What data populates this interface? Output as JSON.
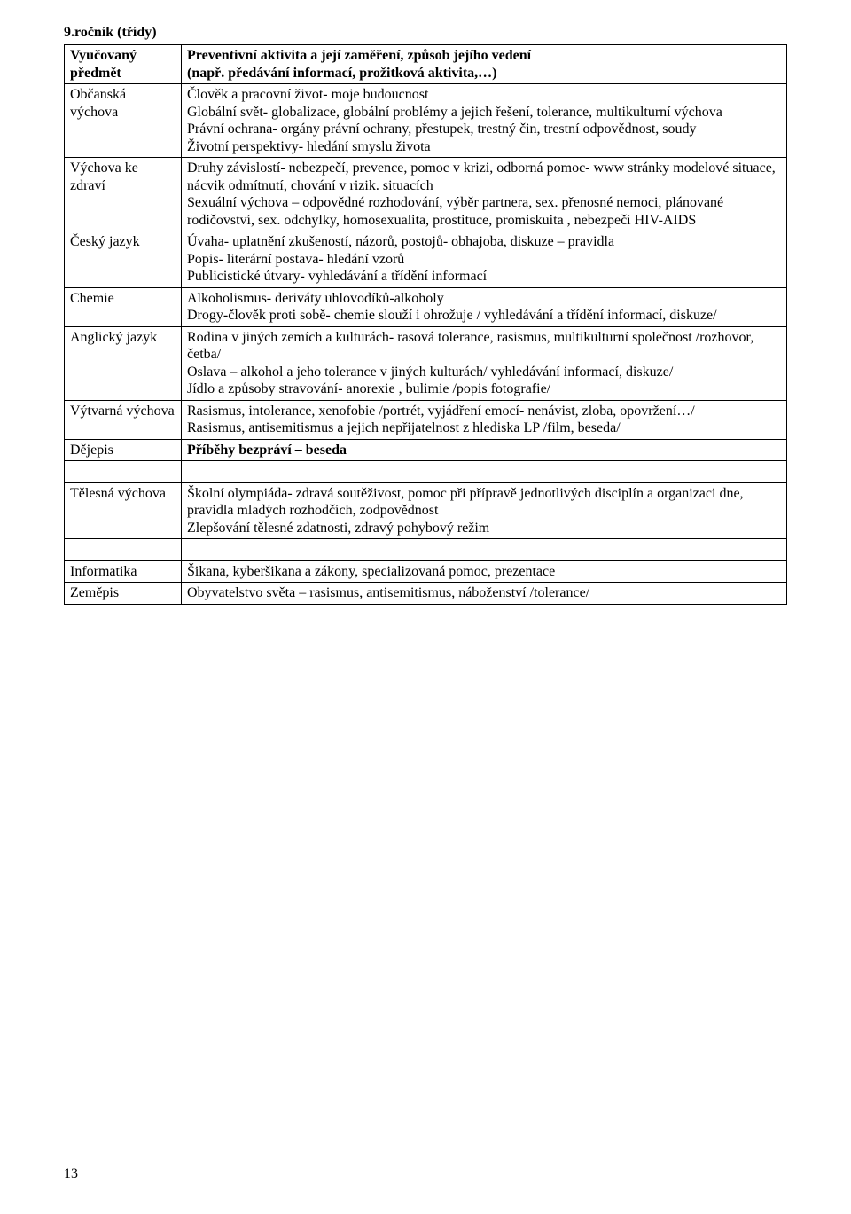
{
  "heading": "9.ročník (třídy)",
  "header": {
    "left": "Vyučovaný předmět",
    "right_line1": "Preventivní aktivita a její zaměření, způsob jejího vedení",
    "right_line2": "(např. předávání informací, prožitková aktivita,…)"
  },
  "rows": {
    "r1": {
      "subject": "Občanská výchova",
      "line1": "Člověk a pracovní život- moje budoucnost",
      "line2": "Globální svět- globalizace, globální problémy a jejich řešení, tolerance, multikulturní výchova",
      "line3": "Právní ochrana- orgány právní ochrany, přestupek, trestný čin,  trestní odpovědnost, soudy",
      "line4": "Životní perspektivy- hledání smyslu života"
    },
    "r2": {
      "subject": "Výchova ke zdraví",
      "line1": "Druhy závislostí- nebezpečí, prevence, pomoc v krizi, odborná pomoc- www stránky modelové situace, nácvik odmítnutí, chování v rizik. situacích",
      "line2": "Sexuální výchova – odpovědné rozhodování, výběr partnera, sex. přenosné nemoci, plánované rodičovství, sex. odchylky, homosexualita, prostituce, promiskuita , nebezpečí HIV-AIDS"
    },
    "r3": {
      "subject": "Český jazyk",
      "line1": "Úvaha- uplatnění zkušeností, názorů, postojů- obhajoba, diskuze – pravidla",
      "line2": "Popis- literární postava- hledání vzorů",
      "line3": "Publicistické útvary- vyhledávání a třídění informací"
    },
    "r4": {
      "subject": "Chemie",
      "line1": "Alkoholismus- deriváty uhlovodíků-alkoholy",
      "line2": "Drogy-člověk proti sobě- chemie slouží i ohrožuje / vyhledávání a třídění informací, diskuze/"
    },
    "r5": {
      "subject": "Anglický jazyk",
      "line1": "Rodina v jiných zemích a kulturách- rasová tolerance, rasismus, multikulturní společnost /rozhovor, četba/",
      "line2": "Oslava – alkohol a jeho tolerance v jiných kulturách/ vyhledávání informací, diskuze/",
      "line3": "Jídlo a způsoby stravování- anorexie , bulimie /popis fotografie/"
    },
    "r6": {
      "subject": "Výtvarná výchova",
      "line1": "Rasismus, intolerance, xenofobie /portrét, vyjádření emocí- nenávist, zloba, opovržení…/",
      "line2": "Rasismus, antisemitismus a jejich nepřijatelnost z hlediska LP /film, beseda/"
    },
    "r7": {
      "subject": "Dějepis",
      "line1": "Příběhy bezpráví – beseda"
    },
    "r8": {
      "subject": "Tělesná výchova",
      "line1": "Školní olympiáda- zdravá soutěživost, pomoc při přípravě jednotlivých disciplín a organizaci dne, pravidla mladých rozhodčích, zodpovědnost",
      "line2": "Zlepšování tělesné zdatnosti, zdravý pohybový režim"
    },
    "r9": {
      "subject": "Informatika",
      "line1": "Šikana, kyberšikana a zákony, specializovaná pomoc, prezentace"
    },
    "r10": {
      "subject": "Zeměpis",
      "line1": "Obyvatelstvo světa – rasismus, antisemitismus, náboženství /tolerance/"
    }
  },
  "pageNumber": "13"
}
